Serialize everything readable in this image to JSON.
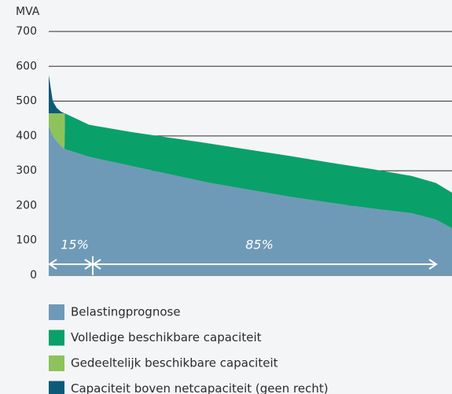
{
  "chart_data": {
    "type": "stacked_area",
    "y_axis_label": "MVA",
    "x": [
      0,
      1,
      2,
      3,
      3.9,
      4,
      10,
      20,
      30,
      40,
      50,
      60,
      70,
      80,
      90,
      96,
      100
    ],
    "xlim": [
      0,
      100
    ],
    "ylim": [
      0,
      700
    ],
    "yticks": [
      0,
      100,
      200,
      300,
      400,
      500,
      600,
      700
    ],
    "grid": true,
    "series": [
      {
        "name": "Belastingprognose",
        "color": "#6f9ab7",
        "values": [
          430,
          400,
          385,
          372,
          363,
          362,
          340,
          315,
          290,
          265,
          245,
          225,
          208,
          192,
          178,
          160,
          135
        ]
      },
      {
        "name": "Volledige beschikbare capaciteit",
        "color": "#0aa06a",
        "values": [
          0,
          0,
          0,
          0,
          0,
          103,
          92,
          97,
          105,
          113,
          115,
          117,
          115,
          113,
          107,
          105,
          102
        ]
      },
      {
        "name": "Gedeeltelijk beschikbare capaciteit",
        "color": "#8dc35a",
        "values": [
          35,
          65,
          80,
          93,
          102,
          0,
          0,
          0,
          0,
          0,
          0,
          0,
          0,
          0,
          0,
          0,
          0
        ]
      },
      {
        "name": "Capaciteit boven netcapaciteit (geen recht)",
        "color": "#0b5a78",
        "values": [
          110,
          35,
          15,
          5,
          0,
          0,
          0,
          0,
          0,
          0,
          0,
          0,
          0,
          0,
          0,
          0,
          0
        ]
      }
    ],
    "annotations": [
      "15%",
      "85%"
    ]
  }
}
